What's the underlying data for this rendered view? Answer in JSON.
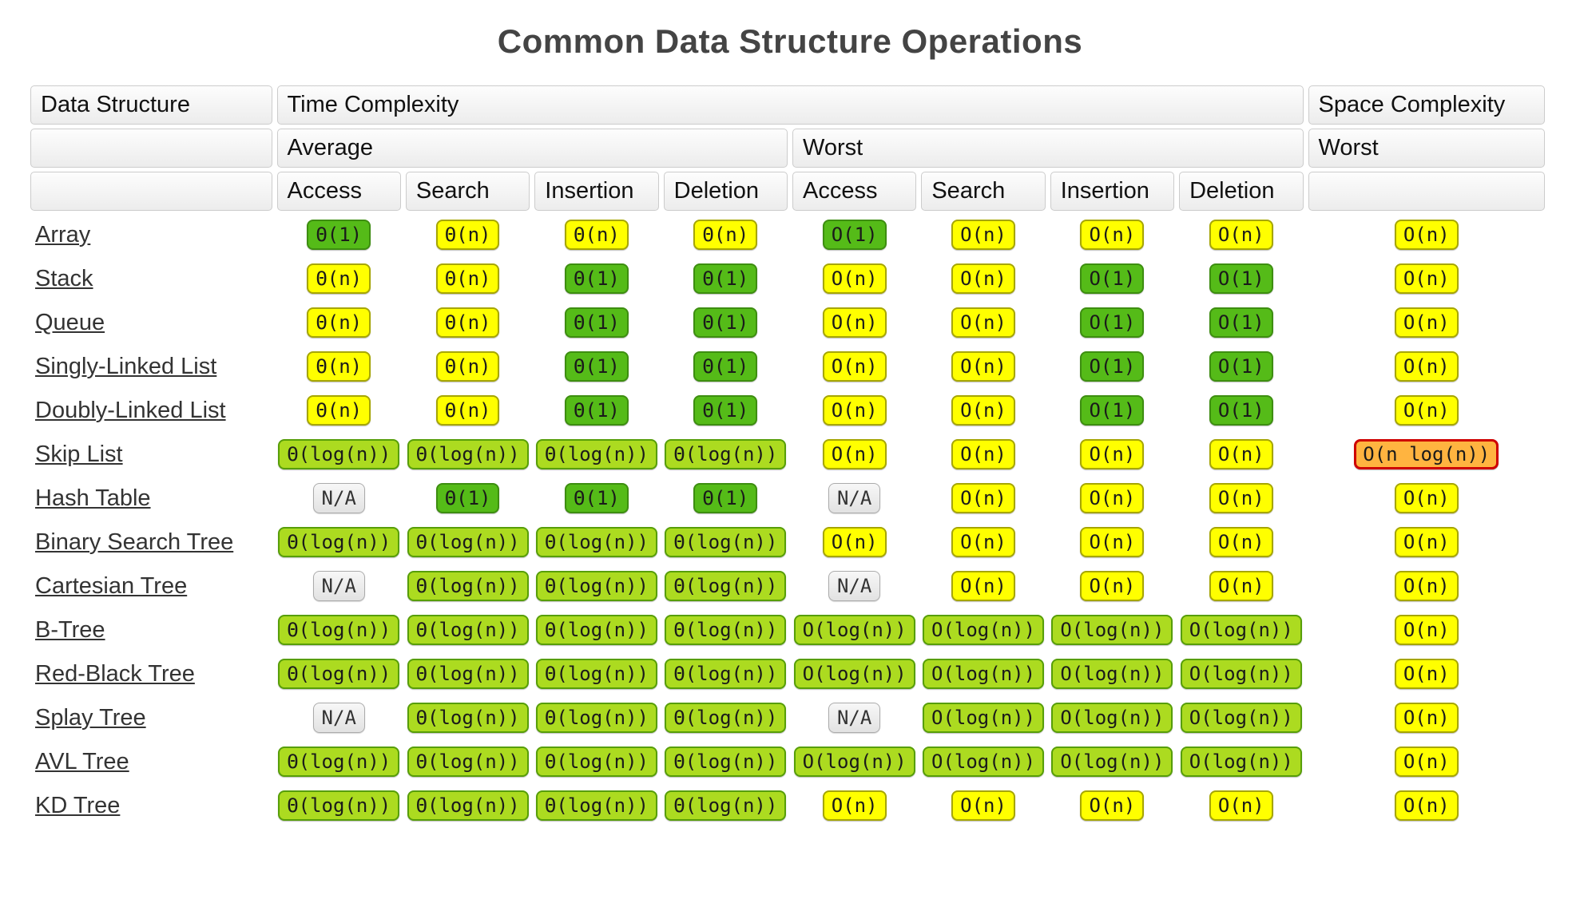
{
  "title": "Common Data Structure Operations",
  "header": {
    "col_data_structure": "Data Structure",
    "col_time": "Time Complexity",
    "col_space": "Space Complexity",
    "avg_label": "Average",
    "worst_label": "Worst",
    "space_worst_label": "Worst",
    "ops": [
      "Access",
      "Search",
      "Insertion",
      "Deletion",
      "Access",
      "Search",
      "Insertion",
      "Deletion"
    ]
  },
  "colors": {
    "green": "#55BB18",
    "yellowgreen": "#ACDB20",
    "yellow": "#FFFF00",
    "orange": "#FFB440",
    "orange_border": "#CE0000",
    "gray": "#EDEDED"
  },
  "chart_data": {
    "type": "table",
    "title": "Common Data Structure Operations",
    "columns": [
      "Data Structure",
      "Average Access",
      "Average Search",
      "Average Insertion",
      "Average Deletion",
      "Worst Access",
      "Worst Search",
      "Worst Insertion",
      "Worst Deletion",
      "Space Complexity Worst"
    ],
    "rows": [
      [
        "Array",
        "Θ(1)",
        "Θ(n)",
        "Θ(n)",
        "Θ(n)",
        "O(1)",
        "O(n)",
        "O(n)",
        "O(n)",
        "O(n)"
      ],
      [
        "Stack",
        "Θ(n)",
        "Θ(n)",
        "Θ(1)",
        "Θ(1)",
        "O(n)",
        "O(n)",
        "O(1)",
        "O(1)",
        "O(n)"
      ],
      [
        "Queue",
        "Θ(n)",
        "Θ(n)",
        "Θ(1)",
        "Θ(1)",
        "O(n)",
        "O(n)",
        "O(1)",
        "O(1)",
        "O(n)"
      ],
      [
        "Singly-Linked List",
        "Θ(n)",
        "Θ(n)",
        "Θ(1)",
        "Θ(1)",
        "O(n)",
        "O(n)",
        "O(1)",
        "O(1)",
        "O(n)"
      ],
      [
        "Doubly-Linked List",
        "Θ(n)",
        "Θ(n)",
        "Θ(1)",
        "Θ(1)",
        "O(n)",
        "O(n)",
        "O(1)",
        "O(1)",
        "O(n)"
      ],
      [
        "Skip List",
        "Θ(log(n))",
        "Θ(log(n))",
        "Θ(log(n))",
        "Θ(log(n))",
        "O(n)",
        "O(n)",
        "O(n)",
        "O(n)",
        "O(n log(n))"
      ],
      [
        "Hash Table",
        "N/A",
        "Θ(1)",
        "Θ(1)",
        "Θ(1)",
        "N/A",
        "O(n)",
        "O(n)",
        "O(n)",
        "O(n)"
      ],
      [
        "Binary Search Tree",
        "Θ(log(n))",
        "Θ(log(n))",
        "Θ(log(n))",
        "Θ(log(n))",
        "O(n)",
        "O(n)",
        "O(n)",
        "O(n)",
        "O(n)"
      ],
      [
        "Cartesian Tree",
        "N/A",
        "Θ(log(n))",
        "Θ(log(n))",
        "Θ(log(n))",
        "N/A",
        "O(n)",
        "O(n)",
        "O(n)",
        "O(n)"
      ],
      [
        "B-Tree",
        "Θ(log(n))",
        "Θ(log(n))",
        "Θ(log(n))",
        "Θ(log(n))",
        "O(log(n))",
        "O(log(n))",
        "O(log(n))",
        "O(log(n))",
        "O(n)"
      ],
      [
        "Red-Black Tree",
        "Θ(log(n))",
        "Θ(log(n))",
        "Θ(log(n))",
        "Θ(log(n))",
        "O(log(n))",
        "O(log(n))",
        "O(log(n))",
        "O(log(n))",
        "O(n)"
      ],
      [
        "Splay Tree",
        "N/A",
        "Θ(log(n))",
        "Θ(log(n))",
        "Θ(log(n))",
        "N/A",
        "O(log(n))",
        "O(log(n))",
        "O(log(n))",
        "O(n)"
      ],
      [
        "AVL Tree",
        "Θ(log(n))",
        "Θ(log(n))",
        "Θ(log(n))",
        "Θ(log(n))",
        "O(log(n))",
        "O(log(n))",
        "O(log(n))",
        "O(log(n))",
        "O(n)"
      ],
      [
        "KD Tree",
        "Θ(log(n))",
        "Θ(log(n))",
        "Θ(log(n))",
        "Θ(log(n))",
        "O(n)",
        "O(n)",
        "O(n)",
        "O(n)",
        "O(n)"
      ]
    ]
  },
  "rows": [
    {
      "name": "Array",
      "cells": [
        {
          "text": "Θ(1)",
          "color": "green"
        },
        {
          "text": "Θ(n)",
          "color": "yellow"
        },
        {
          "text": "Θ(n)",
          "color": "yellow"
        },
        {
          "text": "Θ(n)",
          "color": "yellow"
        },
        {
          "text": "O(1)",
          "color": "green"
        },
        {
          "text": "O(n)",
          "color": "yellow"
        },
        {
          "text": "O(n)",
          "color": "yellow"
        },
        {
          "text": "O(n)",
          "color": "yellow"
        },
        {
          "text": "O(n)",
          "color": "yellow"
        }
      ]
    },
    {
      "name": "Stack",
      "cells": [
        {
          "text": "Θ(n)",
          "color": "yellow"
        },
        {
          "text": "Θ(n)",
          "color": "yellow"
        },
        {
          "text": "Θ(1)",
          "color": "green"
        },
        {
          "text": "Θ(1)",
          "color": "green"
        },
        {
          "text": "O(n)",
          "color": "yellow"
        },
        {
          "text": "O(n)",
          "color": "yellow"
        },
        {
          "text": "O(1)",
          "color": "green"
        },
        {
          "text": "O(1)",
          "color": "green"
        },
        {
          "text": "O(n)",
          "color": "yellow"
        }
      ]
    },
    {
      "name": "Queue",
      "cells": [
        {
          "text": "Θ(n)",
          "color": "yellow"
        },
        {
          "text": "Θ(n)",
          "color": "yellow"
        },
        {
          "text": "Θ(1)",
          "color": "green"
        },
        {
          "text": "Θ(1)",
          "color": "green"
        },
        {
          "text": "O(n)",
          "color": "yellow"
        },
        {
          "text": "O(n)",
          "color": "yellow"
        },
        {
          "text": "O(1)",
          "color": "green"
        },
        {
          "text": "O(1)",
          "color": "green"
        },
        {
          "text": "O(n)",
          "color": "yellow"
        }
      ]
    },
    {
      "name": "Singly-Linked List",
      "cells": [
        {
          "text": "Θ(n)",
          "color": "yellow"
        },
        {
          "text": "Θ(n)",
          "color": "yellow"
        },
        {
          "text": "Θ(1)",
          "color": "green"
        },
        {
          "text": "Θ(1)",
          "color": "green"
        },
        {
          "text": "O(n)",
          "color": "yellow"
        },
        {
          "text": "O(n)",
          "color": "yellow"
        },
        {
          "text": "O(1)",
          "color": "green"
        },
        {
          "text": "O(1)",
          "color": "green"
        },
        {
          "text": "O(n)",
          "color": "yellow"
        }
      ]
    },
    {
      "name": "Doubly-Linked List",
      "cells": [
        {
          "text": "Θ(n)",
          "color": "yellow"
        },
        {
          "text": "Θ(n)",
          "color": "yellow"
        },
        {
          "text": "Θ(1)",
          "color": "green"
        },
        {
          "text": "Θ(1)",
          "color": "green"
        },
        {
          "text": "O(n)",
          "color": "yellow"
        },
        {
          "text": "O(n)",
          "color": "yellow"
        },
        {
          "text": "O(1)",
          "color": "green"
        },
        {
          "text": "O(1)",
          "color": "green"
        },
        {
          "text": "O(n)",
          "color": "yellow"
        }
      ]
    },
    {
      "name": "Skip List",
      "cells": [
        {
          "text": "Θ(log(n))",
          "color": "yellowgreen"
        },
        {
          "text": "Θ(log(n))",
          "color": "yellowgreen"
        },
        {
          "text": "Θ(log(n))",
          "color": "yellowgreen"
        },
        {
          "text": "Θ(log(n))",
          "color": "yellowgreen"
        },
        {
          "text": "O(n)",
          "color": "yellow"
        },
        {
          "text": "O(n)",
          "color": "yellow"
        },
        {
          "text": "O(n)",
          "color": "yellow"
        },
        {
          "text": "O(n)",
          "color": "yellow"
        },
        {
          "text": "O(n log(n))",
          "color": "orange"
        }
      ]
    },
    {
      "name": "Hash Table",
      "cells": [
        {
          "text": "N/A",
          "color": "gray"
        },
        {
          "text": "Θ(1)",
          "color": "green"
        },
        {
          "text": "Θ(1)",
          "color": "green"
        },
        {
          "text": "Θ(1)",
          "color": "green"
        },
        {
          "text": "N/A",
          "color": "gray"
        },
        {
          "text": "O(n)",
          "color": "yellow"
        },
        {
          "text": "O(n)",
          "color": "yellow"
        },
        {
          "text": "O(n)",
          "color": "yellow"
        },
        {
          "text": "O(n)",
          "color": "yellow"
        }
      ]
    },
    {
      "name": "Binary Search Tree",
      "cells": [
        {
          "text": "Θ(log(n))",
          "color": "yellowgreen"
        },
        {
          "text": "Θ(log(n))",
          "color": "yellowgreen"
        },
        {
          "text": "Θ(log(n))",
          "color": "yellowgreen"
        },
        {
          "text": "Θ(log(n))",
          "color": "yellowgreen"
        },
        {
          "text": "O(n)",
          "color": "yellow"
        },
        {
          "text": "O(n)",
          "color": "yellow"
        },
        {
          "text": "O(n)",
          "color": "yellow"
        },
        {
          "text": "O(n)",
          "color": "yellow"
        },
        {
          "text": "O(n)",
          "color": "yellow"
        }
      ]
    },
    {
      "name": "Cartesian Tree",
      "cells": [
        {
          "text": "N/A",
          "color": "gray"
        },
        {
          "text": "Θ(log(n))",
          "color": "yellowgreen"
        },
        {
          "text": "Θ(log(n))",
          "color": "yellowgreen"
        },
        {
          "text": "Θ(log(n))",
          "color": "yellowgreen"
        },
        {
          "text": "N/A",
          "color": "gray"
        },
        {
          "text": "O(n)",
          "color": "yellow"
        },
        {
          "text": "O(n)",
          "color": "yellow"
        },
        {
          "text": "O(n)",
          "color": "yellow"
        },
        {
          "text": "O(n)",
          "color": "yellow"
        }
      ]
    },
    {
      "name": "B-Tree",
      "cells": [
        {
          "text": "Θ(log(n))",
          "color": "yellowgreen"
        },
        {
          "text": "Θ(log(n))",
          "color": "yellowgreen"
        },
        {
          "text": "Θ(log(n))",
          "color": "yellowgreen"
        },
        {
          "text": "Θ(log(n))",
          "color": "yellowgreen"
        },
        {
          "text": "O(log(n))",
          "color": "yellowgreen"
        },
        {
          "text": "O(log(n))",
          "color": "yellowgreen"
        },
        {
          "text": "O(log(n))",
          "color": "yellowgreen"
        },
        {
          "text": "O(log(n))",
          "color": "yellowgreen"
        },
        {
          "text": "O(n)",
          "color": "yellow"
        }
      ]
    },
    {
      "name": "Red-Black Tree",
      "cells": [
        {
          "text": "Θ(log(n))",
          "color": "yellowgreen"
        },
        {
          "text": "Θ(log(n))",
          "color": "yellowgreen"
        },
        {
          "text": "Θ(log(n))",
          "color": "yellowgreen"
        },
        {
          "text": "Θ(log(n))",
          "color": "yellowgreen"
        },
        {
          "text": "O(log(n))",
          "color": "yellowgreen"
        },
        {
          "text": "O(log(n))",
          "color": "yellowgreen"
        },
        {
          "text": "O(log(n))",
          "color": "yellowgreen"
        },
        {
          "text": "O(log(n))",
          "color": "yellowgreen"
        },
        {
          "text": "O(n)",
          "color": "yellow"
        }
      ]
    },
    {
      "name": "Splay Tree",
      "cells": [
        {
          "text": "N/A",
          "color": "gray"
        },
        {
          "text": "Θ(log(n))",
          "color": "yellowgreen"
        },
        {
          "text": "Θ(log(n))",
          "color": "yellowgreen"
        },
        {
          "text": "Θ(log(n))",
          "color": "yellowgreen"
        },
        {
          "text": "N/A",
          "color": "gray"
        },
        {
          "text": "O(log(n))",
          "color": "yellowgreen"
        },
        {
          "text": "O(log(n))",
          "color": "yellowgreen"
        },
        {
          "text": "O(log(n))",
          "color": "yellowgreen"
        },
        {
          "text": "O(n)",
          "color": "yellow"
        }
      ]
    },
    {
      "name": "AVL Tree",
      "cells": [
        {
          "text": "Θ(log(n))",
          "color": "yellowgreen"
        },
        {
          "text": "Θ(log(n))",
          "color": "yellowgreen"
        },
        {
          "text": "Θ(log(n))",
          "color": "yellowgreen"
        },
        {
          "text": "Θ(log(n))",
          "color": "yellowgreen"
        },
        {
          "text": "O(log(n))",
          "color": "yellowgreen"
        },
        {
          "text": "O(log(n))",
          "color": "yellowgreen"
        },
        {
          "text": "O(log(n))",
          "color": "yellowgreen"
        },
        {
          "text": "O(log(n))",
          "color": "yellowgreen"
        },
        {
          "text": "O(n)",
          "color": "yellow"
        }
      ]
    },
    {
      "name": "KD Tree",
      "cells": [
        {
          "text": "Θ(log(n))",
          "color": "yellowgreen"
        },
        {
          "text": "Θ(log(n))",
          "color": "yellowgreen"
        },
        {
          "text": "Θ(log(n))",
          "color": "yellowgreen"
        },
        {
          "text": "Θ(log(n))",
          "color": "yellowgreen"
        },
        {
          "text": "O(n)",
          "color": "yellow"
        },
        {
          "text": "O(n)",
          "color": "yellow"
        },
        {
          "text": "O(n)",
          "color": "yellow"
        },
        {
          "text": "O(n)",
          "color": "yellow"
        },
        {
          "text": "O(n)",
          "color": "yellow"
        }
      ]
    }
  ]
}
